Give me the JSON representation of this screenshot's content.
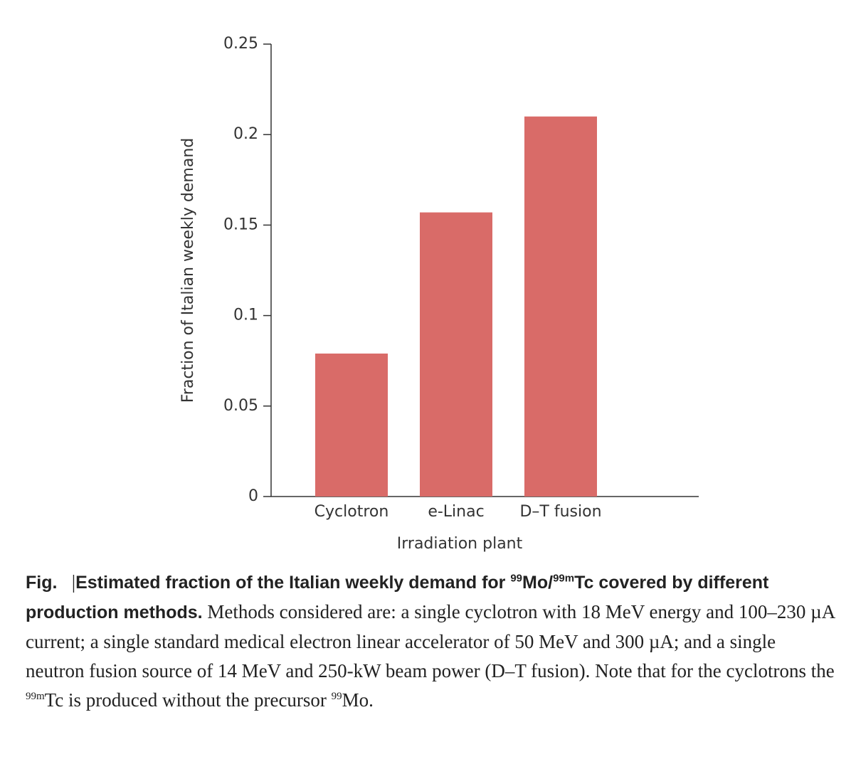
{
  "chart_data": {
    "type": "bar",
    "categories": [
      "Cyclotron",
      "e-Linac",
      "D–T fusion"
    ],
    "values": [
      0.079,
      0.157,
      0.21
    ],
    "color": "#d96b68",
    "ylim": [
      0,
      0.25
    ],
    "yticks": [
      0,
      0.05,
      0.1,
      0.15,
      0.2,
      0.25
    ],
    "ylabel": "Fraction of Italian weekly demand",
    "xlabel": "Irradiation plant"
  },
  "caption": {
    "label": "Fig.",
    "separator": "|",
    "title": [
      "Estimated fraction of the Italian weekly demand for ",
      "99",
      "Mo/",
      "99m",
      "Tc covered by different production methods."
    ],
    "body": [
      "Methods considered are: a single cyclotron with 18 MeV energy and 100–230 µA current; a single standard medical electron linear accelerator of 50 MeV and 300 µA; and a single neutron fusion source of 14 MeV and 250-kW beam power (D–T fusion). Note that for the cyclotrons the ",
      "99m",
      "Tc is produced without the precursor ",
      "99",
      "Mo."
    ]
  }
}
